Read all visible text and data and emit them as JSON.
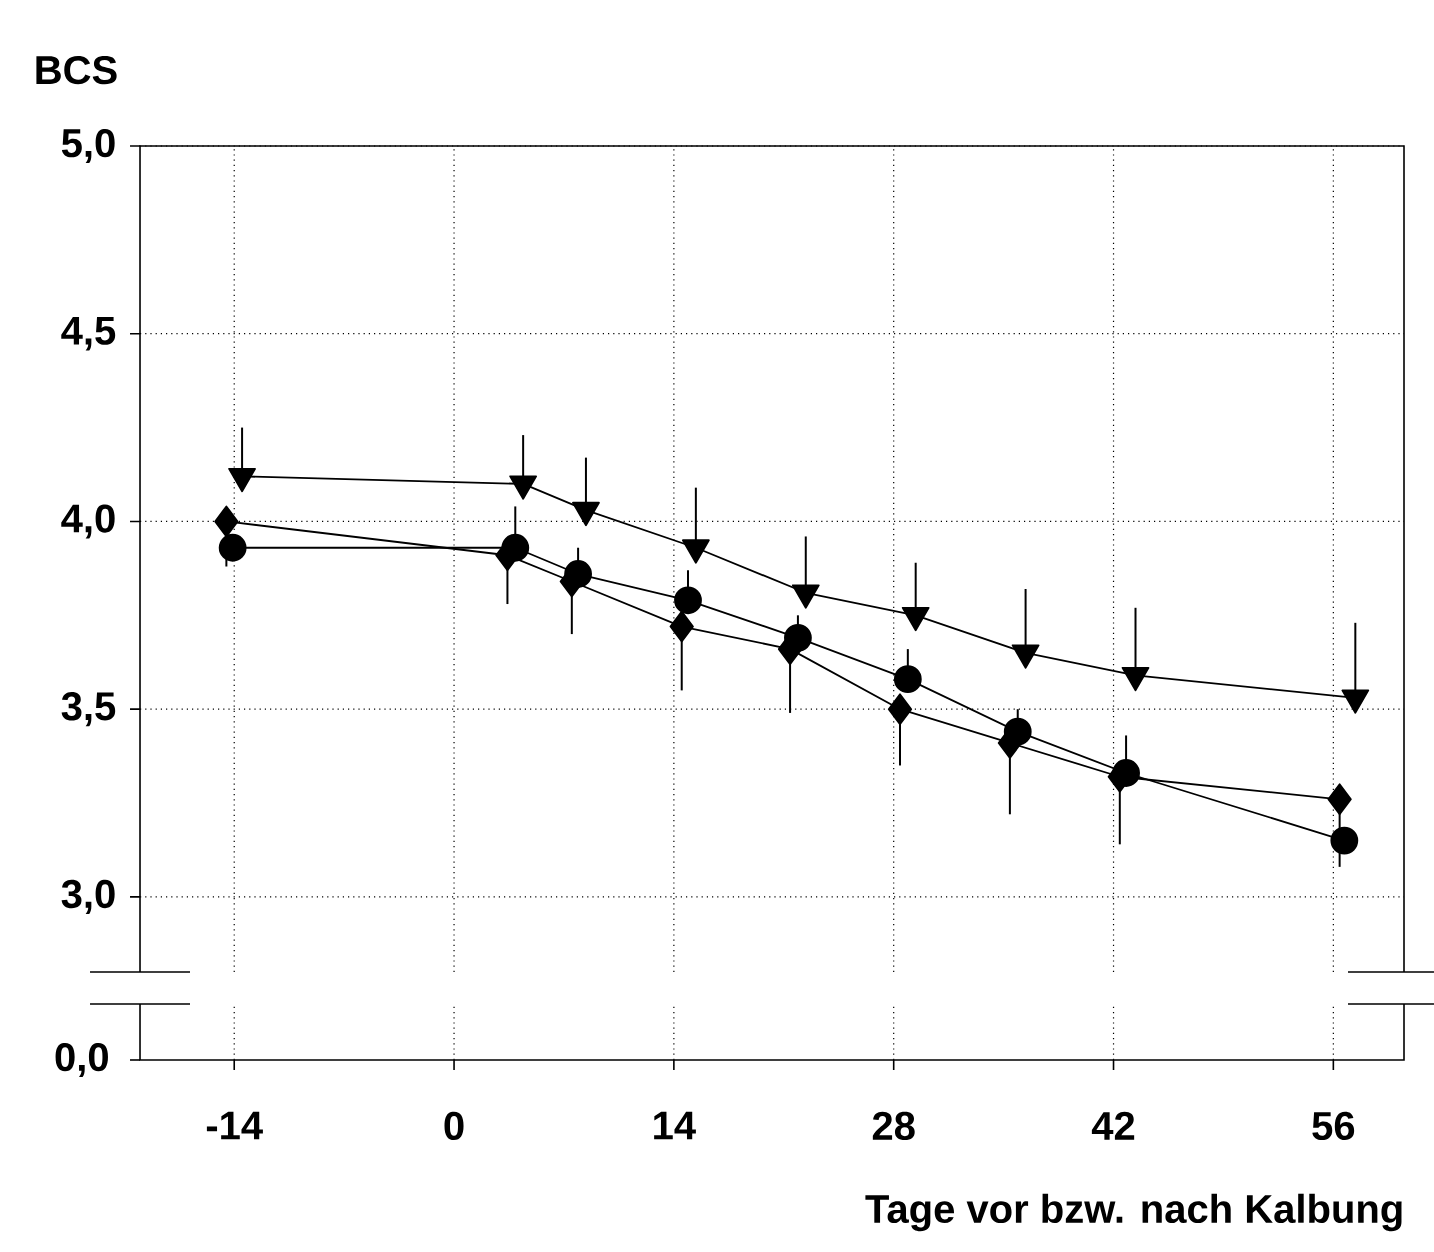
{
  "chart_data": {
    "type": "line",
    "ylabel": "BCS",
    "xlabel": "Tage vor bzw. nach Kalbung",
    "xlim": [
      -20,
      60.5
    ],
    "xticks": [
      -14,
      0,
      14,
      28,
      42,
      56
    ],
    "ylim": [
      2.8,
      5.0
    ],
    "yticks": [
      {
        "value": 3.0,
        "label": "3,0"
      },
      {
        "value": 3.5,
        "label": "3,5"
      },
      {
        "value": 4.0,
        "label": "4,0"
      },
      {
        "value": 4.5,
        "label": "4,5"
      },
      {
        "value": 5.0,
        "label": "5,0"
      }
    ],
    "annotations": [
      "0,0"
    ],
    "grid": true,
    "line_style": "solid",
    "series": [
      {
        "color": "#000000",
        "marker": "triangle-down",
        "x": [
          -13.5,
          4.4,
          8.4,
          15.4,
          22.4,
          29.4,
          36.4,
          43.4,
          57.4
        ],
        "values": [
          4.12,
          4.1,
          4.03,
          3.93,
          3.81,
          3.75,
          3.65,
          3.59,
          3.53
        ],
        "errors": [
          [
            4.12,
            4.25
          ],
          [
            4.1,
            4.23
          ],
          [
            4.03,
            4.17
          ],
          [
            3.93,
            4.09
          ],
          [
            3.81,
            3.96
          ],
          [
            3.75,
            3.89
          ],
          [
            3.65,
            3.82
          ],
          [
            3.59,
            3.77
          ],
          [
            3.53,
            3.73
          ]
        ]
      },
      {
        "color": "#000000",
        "marker": "diamond",
        "x": [
          -14.5,
          3.4,
          7.5,
          14.5,
          21.4,
          28.4,
          35.4,
          42.4,
          56.4
        ],
        "values": [
          4.0,
          3.91,
          3.84,
          3.72,
          3.66,
          3.5,
          3.41,
          3.32,
          3.26
        ],
        "errors": [
          [
            3.88,
            4.0
          ],
          [
            3.78,
            3.91
          ],
          [
            3.7,
            3.84
          ],
          [
            3.55,
            3.72
          ],
          [
            3.49,
            3.66
          ],
          [
            3.35,
            3.5
          ],
          [
            3.22,
            3.41
          ],
          [
            3.14,
            3.32
          ],
          [
            3.08,
            3.26
          ]
        ]
      },
      {
        "color": "#000000",
        "marker": "circle",
        "x": [
          -14.1,
          3.9,
          7.9,
          14.9,
          21.9,
          28.9,
          35.9,
          42.8,
          56.7
        ],
        "values": [
          3.93,
          3.93,
          3.86,
          3.79,
          3.69,
          3.58,
          3.44,
          3.33,
          3.15
        ],
        "errors": [
          null,
          [
            3.93,
            4.04
          ],
          [
            3.86,
            3.93
          ],
          [
            3.79,
            3.87
          ],
          [
            3.69,
            3.75
          ],
          [
            3.58,
            3.66
          ],
          [
            3.44,
            3.5
          ],
          [
            3.33,
            3.43
          ],
          null
        ]
      }
    ]
  }
}
